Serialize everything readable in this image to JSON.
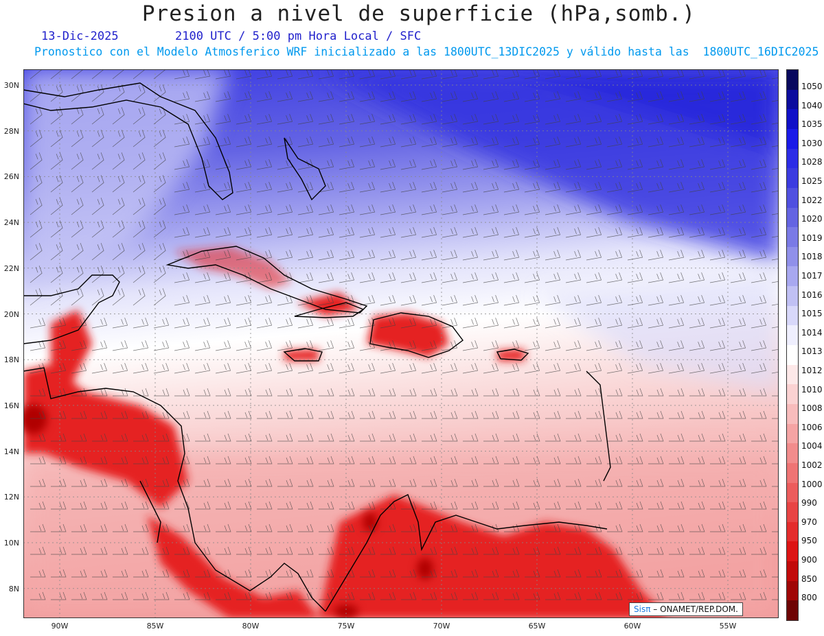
{
  "header": {
    "title": "Presion a nivel de superficie (hPa,somb.)",
    "date": "13-Dic-2025",
    "time": "2100 UTC / 5:00 pm Hora Local / SFC",
    "model_line": "Pronostico con el Modelo Atmosferico WRF inicializado a las 1800UTC_13DIC2025 y válido hasta las  1800UTC_16DIC2025"
  },
  "map": {
    "lat_labels": [
      "30N",
      "28N",
      "26N",
      "24N",
      "22N",
      "20N",
      "18N",
      "16N",
      "14N",
      "12N",
      "10N",
      "8N"
    ],
    "lon_labels": [
      "90W",
      "85W",
      "80W",
      "75W",
      "70W",
      "65W",
      "60W",
      "55W"
    ]
  },
  "colorbar": {
    "labels": [
      "1050",
      "1040",
      "1035",
      "1030",
      "1028",
      "1025",
      "1022",
      "1020",
      "1019",
      "1018",
      "1017",
      "1016",
      "1015",
      "1014",
      "1013",
      "1012",
      "1010",
      "1008",
      "1006",
      "1004",
      "1002",
      "1000",
      "990",
      "970",
      "950",
      "900",
      "850",
      "800"
    ],
    "colors": [
      "#08085e",
      "#0c0c9e",
      "#1010c8",
      "#1a1ae8",
      "#2c2ce6",
      "#3b3be0",
      "#5050e0",
      "#6464e2",
      "#7a7ae6",
      "#9090ea",
      "#a8a8f0",
      "#c0c0f4",
      "#d8d8fa",
      "#efeffe",
      "#ffffff",
      "#fde8e8",
      "#fbd2d2",
      "#f8bcbc",
      "#f5a4a4",
      "#f28c8c",
      "#ef7474",
      "#ec5c5c",
      "#e84444",
      "#e42c2c",
      "#dd1414",
      "#c20a0a",
      "#a00606",
      "#6e0303"
    ]
  },
  "credit": {
    "brand": "Sisπ",
    "text": " – ONAMET/REP.DOM."
  }
}
